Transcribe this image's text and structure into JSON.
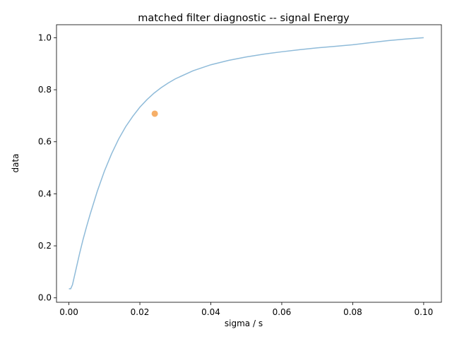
{
  "chart_data": {
    "type": "line",
    "title": "matched filter diagnostic -- signal Energy",
    "xlabel": "sigma / s",
    "ylabel": "data",
    "xlim": [
      -0.0035,
      0.105
    ],
    "ylim": [
      -0.017,
      1.05
    ],
    "xticks": [
      0.0,
      0.02,
      0.04,
      0.06,
      0.08,
      0.1
    ],
    "xtick_labels": [
      "0.00",
      "0.02",
      "0.04",
      "0.06",
      "0.08",
      "0.10"
    ],
    "yticks": [
      0.0,
      0.2,
      0.4,
      0.6,
      0.8,
      1.0
    ],
    "ytick_labels": [
      "0.0",
      "0.2",
      "0.4",
      "0.6",
      "0.8",
      "1.0"
    ],
    "grid": false,
    "legend": "none",
    "series": [
      {
        "color": "#8fbbd9",
        "x": [
          0.0,
          0.0005,
          0.001,
          0.002,
          0.003,
          0.004,
          0.005,
          0.006,
          0.008,
          0.01,
          0.012,
          0.014,
          0.016,
          0.018,
          0.02,
          0.022,
          0.024,
          0.026,
          0.028,
          0.03,
          0.035,
          0.04,
          0.045,
          0.05,
          0.055,
          0.06,
          0.065,
          0.07,
          0.075,
          0.08,
          0.085,
          0.09,
          0.095,
          0.1
        ],
        "y": [
          0.035,
          0.035,
          0.05,
          0.11,
          0.17,
          0.225,
          0.275,
          0.322,
          0.41,
          0.487,
          0.553,
          0.61,
          0.658,
          0.698,
          0.733,
          0.762,
          0.787,
          0.808,
          0.826,
          0.842,
          0.873,
          0.896,
          0.913,
          0.926,
          0.937,
          0.946,
          0.954,
          0.961,
          0.967,
          0.973,
          0.981,
          0.989,
          0.995,
          1.0
        ]
      }
    ],
    "marker": {
      "x": 0.0242,
      "y": 0.708,
      "color": "#f5a658"
    }
  }
}
